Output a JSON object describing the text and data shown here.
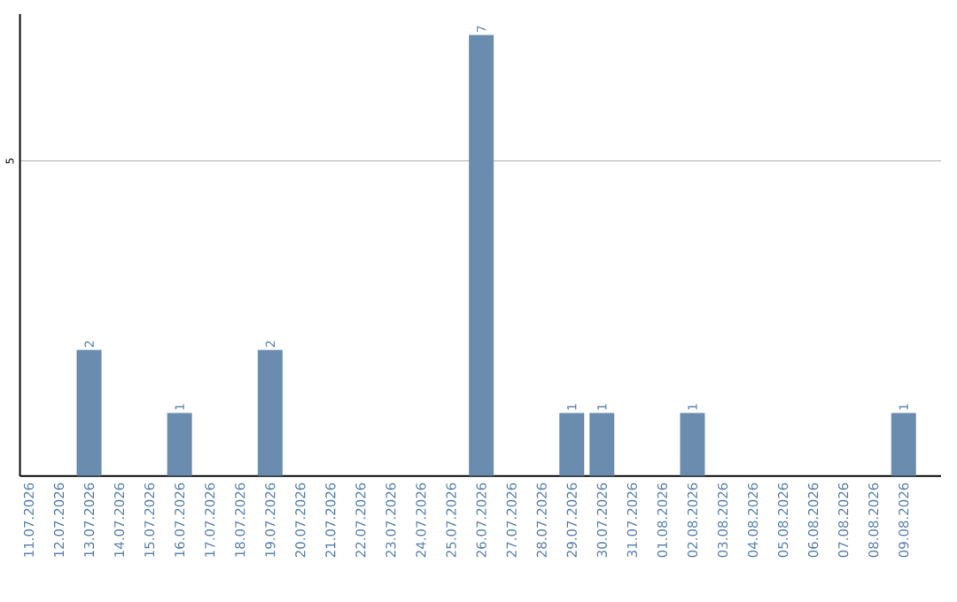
{
  "chart_data": {
    "type": "bar",
    "categories": [
      "11.07.2026",
      "12.07.2026",
      "13.07.2026",
      "14.07.2026",
      "15.07.2026",
      "16.07.2026",
      "17.07.2026",
      "18.07.2026",
      "19.07.2026",
      "20.07.2026",
      "21.07.2026",
      "22.07.2026",
      "23.07.2026",
      "24.07.2026",
      "25.07.2026",
      "26.07.2026",
      "27.07.2026",
      "28.07.2026",
      "29.07.2026",
      "30.07.2026",
      "31.07.2026",
      "01.08.2026",
      "02.08.2026",
      "03.08.2026",
      "04.08.2026",
      "05.08.2026",
      "06.08.2026",
      "07.08.2026",
      "08.08.2026",
      "09.08.2026"
    ],
    "values": [
      0,
      0,
      2,
      0,
      0,
      1,
      0,
      0,
      2,
      0,
      0,
      0,
      0,
      0,
      0,
      7,
      0,
      0,
      1,
      1,
      0,
      0,
      1,
      0,
      0,
      0,
      0,
      0,
      0,
      1
    ],
    "value_labels": [
      null,
      null,
      "2",
      null,
      null,
      "1",
      null,
      null,
      "2",
      null,
      null,
      null,
      null,
      null,
      null,
      "7",
      null,
      null,
      "1",
      "1",
      null,
      null,
      "1",
      null,
      null,
      null,
      null,
      null,
      null,
      "1"
    ],
    "color": "#6a8caf",
    "ylim": [
      0,
      7.33
    ],
    "yticks": [
      5
    ],
    "grid": "y"
  }
}
